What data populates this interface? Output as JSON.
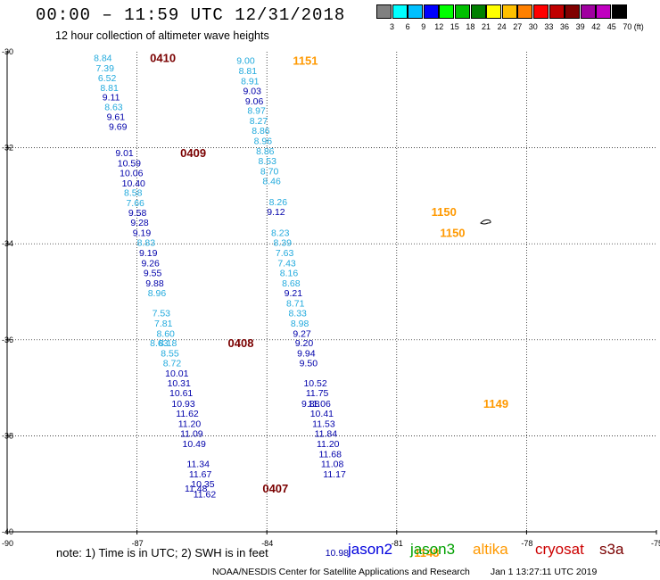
{
  "header": {
    "title": "00:00 – 11:59 UTC 12/31/2018",
    "subtitle": "12 hour collection of altimeter wave heights"
  },
  "color_scale": {
    "labels": [
      "3",
      "6",
      "9",
      "12",
      "15",
      "18",
      "21",
      "24",
      "27",
      "30",
      "33",
      "36",
      "39",
      "42",
      "45",
      "70",
      "(ft)"
    ],
    "colors": [
      "#808080",
      "#00ffff",
      "#00c0ff",
      "#0000ff",
      "#00ff00",
      "#00c000",
      "#008000",
      "#ffff00",
      "#ffc000",
      "#ff8000",
      "#ff0000",
      "#c00000",
      "#800000",
      "#a000a0",
      "#c000c0",
      "#000000"
    ]
  },
  "footer": {
    "note": "note: 1) Time is in UTC; 2) SWH is in feet",
    "agency": "NOAA/NESDIS Center for Satellite Applications and Research",
    "timestamp": "Jan  1 13:27:11 UTC 2019"
  },
  "legend": [
    {
      "label": "jason2",
      "color": "#0000dd"
    },
    {
      "label": "jason3",
      "color": "#00a000"
    },
    {
      "label": "altika",
      "color": "#ff9900"
    },
    {
      "label": "cryosat",
      "color": "#cc0000"
    },
    {
      "label": "s3a",
      "color": "#7a0000"
    }
  ],
  "chart_data": {
    "type": "scatter",
    "xlim": [
      -90,
      -75
    ],
    "ylim": [
      -40.2,
      -30
    ],
    "x_ticks": [
      "-90",
      "-87",
      "-84",
      "-81",
      "-78",
      "-75"
    ],
    "y_ticks": [
      "-30",
      "-32",
      "-34",
      "-36",
      "-38",
      "-40"
    ],
    "grid": true,
    "colors": {
      "dark_blue": "#0000aa",
      "light_blue": "#22aadd"
    },
    "tracks": [
      {
        "satellite": "s3a",
        "pass_color": "#7a0000",
        "pass_labels": [
          {
            "text": "0410",
            "lon": -86.7,
            "lat": -30.12
          },
          {
            "text": "0409",
            "lon": -86.0,
            "lat": -32.1
          },
          {
            "text": "0408",
            "lon": -84.9,
            "lat": -36.06
          },
          {
            "text": "0407",
            "lon": -84.1,
            "lat": -39.09
          }
        ],
        "points": [
          {
            "v": "8.84",
            "lon": -88.0,
            "lat": -30.12,
            "c": "light_blue"
          },
          {
            "v": "7.39",
            "lon": -87.95,
            "lat": -30.33,
            "c": "light_blue"
          },
          {
            "v": "6.52",
            "lon": -87.9,
            "lat": -30.54,
            "c": "light_blue"
          },
          {
            "v": "8.81",
            "lon": -87.85,
            "lat": -30.74,
            "c": "light_blue"
          },
          {
            "v": "9.11",
            "lon": -87.8,
            "lat": -30.94,
            "c": "dark_blue"
          },
          {
            "v": "8.63",
            "lon": -87.75,
            "lat": -31.14,
            "c": "light_blue"
          },
          {
            "v": "9.61",
            "lon": -87.7,
            "lat": -31.35,
            "c": "dark_blue"
          },
          {
            "v": "9.69",
            "lon": -87.65,
            "lat": -31.55,
            "c": "dark_blue"
          },
          {
            "v": "9.01",
            "lon": -87.5,
            "lat": -32.1,
            "c": "dark_blue"
          },
          {
            "v": "10.59",
            "lon": -87.45,
            "lat": -32.31,
            "c": "dark_blue"
          },
          {
            "v": "10.06",
            "lon": -87.4,
            "lat": -32.52,
            "c": "dark_blue"
          },
          {
            "v": "10.40",
            "lon": -87.35,
            "lat": -32.73,
            "c": "dark_blue"
          },
          {
            "v": "8.58",
            "lon": -87.3,
            "lat": -32.93,
            "c": "light_blue"
          },
          {
            "v": "7.66",
            "lon": -87.25,
            "lat": -33.14,
            "c": "light_blue"
          },
          {
            "v": "9.58",
            "lon": -87.2,
            "lat": -33.35,
            "c": "dark_blue"
          },
          {
            "v": "9.28",
            "lon": -87.15,
            "lat": -33.55,
            "c": "dark_blue"
          },
          {
            "v": "9.19",
            "lon": -87.1,
            "lat": -33.76,
            "c": "dark_blue"
          },
          {
            "v": "8.83",
            "lon": -87.0,
            "lat": -33.97,
            "c": "light_blue"
          },
          {
            "v": "9.19",
            "lon": -86.95,
            "lat": -34.18,
            "c": "dark_blue"
          },
          {
            "v": "9.26",
            "lon": -86.9,
            "lat": -34.4,
            "c": "dark_blue"
          },
          {
            "v": "9.55",
            "lon": -86.85,
            "lat": -34.6,
            "c": "dark_blue"
          },
          {
            "v": "9.88",
            "lon": -86.8,
            "lat": -34.81,
            "c": "dark_blue"
          },
          {
            "v": "8.96",
            "lon": -86.75,
            "lat": -35.02,
            "c": "light_blue"
          },
          {
            "v": "8.63",
            "lon": -86.7,
            "lat": -36.06,
            "c": "light_blue"
          },
          {
            "v": "7.53",
            "lon": -86.65,
            "lat": -35.44,
            "c": "light_blue"
          },
          {
            "v": "7.81",
            "lon": -86.6,
            "lat": -35.65,
            "c": "light_blue"
          },
          {
            "v": "8.60",
            "lon": -86.55,
            "lat": -35.86,
            "c": "light_blue"
          },
          {
            "v": "8.18",
            "lon": -86.5,
            "lat": -36.06,
            "c": "light_blue"
          },
          {
            "v": "8.55",
            "lon": -86.45,
            "lat": -36.27,
            "c": "light_blue"
          },
          {
            "v": "8.72",
            "lon": -86.4,
            "lat": -36.48,
            "c": "light_blue"
          },
          {
            "v": "10.01",
            "lon": -86.35,
            "lat": -36.69,
            "c": "dark_blue"
          },
          {
            "v": "10.31",
            "lon": -86.3,
            "lat": -36.9,
            "c": "dark_blue"
          },
          {
            "v": "10.61",
            "lon": -86.25,
            "lat": -37.1,
            "c": "dark_blue"
          },
          {
            "v": "10.93",
            "lon": -86.2,
            "lat": -37.32,
            "c": "dark_blue"
          },
          {
            "v": "11.62",
            "lon": -86.1,
            "lat": -37.53,
            "c": "dark_blue"
          },
          {
            "v": "11.20",
            "lon": -86.05,
            "lat": -37.74,
            "c": "dark_blue"
          },
          {
            "v": "11.09",
            "lon": -86.0,
            "lat": -37.95,
            "c": "dark_blue"
          },
          {
            "v": "10.49",
            "lon": -85.95,
            "lat": -38.16,
            "c": "dark_blue"
          },
          {
            "v": "11.48",
            "lon": -85.9,
            "lat": -39.09,
            "c": "dark_blue"
          },
          {
            "v": "11.34",
            "lon": -85.85,
            "lat": -38.58,
            "c": "dark_blue"
          },
          {
            "v": "11.67",
            "lon": -85.8,
            "lat": -38.79,
            "c": "dark_blue"
          },
          {
            "v": "10.35",
            "lon": -85.75,
            "lat": -39.0,
            "c": "dark_blue"
          },
          {
            "v": "11.62",
            "lon": -85.7,
            "lat": -39.21,
            "c": "dark_blue"
          }
        ]
      },
      {
        "satellite": "altika",
        "pass_color": "#ff9900",
        "pass_labels": [
          {
            "text": "1151",
            "lon": -83.4,
            "lat": -30.18
          },
          {
            "text": "1150",
            "lon": -80.2,
            "lat": -33.33
          },
          {
            "text": "1150",
            "lon": -80.0,
            "lat": -33.76
          },
          {
            "text": "1149",
            "lon": -79.0,
            "lat": -37.32
          },
          {
            "text": "1148",
            "lon": -80.6,
            "lat": -40.43
          }
        ],
        "points": [
          {
            "v": "9.00",
            "lon": -84.7,
            "lat": -30.18,
            "c": "light_blue"
          },
          {
            "v": "8.81",
            "lon": -84.65,
            "lat": -30.39,
            "c": "light_blue"
          },
          {
            "v": "8.91",
            "lon": -84.6,
            "lat": -30.6,
            "c": "light_blue"
          },
          {
            "v": "9.03",
            "lon": -84.55,
            "lat": -30.81,
            "c": "dark_blue"
          },
          {
            "v": "9.06",
            "lon": -84.5,
            "lat": -31.02,
            "c": "dark_blue"
          },
          {
            "v": "8.97",
            "lon": -84.45,
            "lat": -31.22,
            "c": "light_blue"
          },
          {
            "v": "8.27",
            "lon": -84.4,
            "lat": -31.43,
            "c": "light_blue"
          },
          {
            "v": "8.86",
            "lon": -84.35,
            "lat": -31.64,
            "c": "light_blue"
          },
          {
            "v": "8.96",
            "lon": -84.3,
            "lat": -31.85,
            "c": "light_blue"
          },
          {
            "v": "8.86",
            "lon": -84.25,
            "lat": -32.06,
            "c": "light_blue"
          },
          {
            "v": "8.53",
            "lon": -84.2,
            "lat": -32.27,
            "c": "light_blue"
          },
          {
            "v": "8.70",
            "lon": -84.15,
            "lat": -32.48,
            "c": "light_blue"
          },
          {
            "v": "8.46",
            "lon": -84.1,
            "lat": -32.69,
            "c": "light_blue"
          },
          {
            "v": "9.12",
            "lon": -84.0,
            "lat": -33.33,
            "c": "dark_blue"
          },
          {
            "v": "8.26",
            "lon": -83.95,
            "lat": -33.12,
            "c": "light_blue"
          },
          {
            "v": "8.23",
            "lon": -83.9,
            "lat": -33.76,
            "c": "light_blue"
          },
          {
            "v": "8.39",
            "lon": -83.85,
            "lat": -33.97,
            "c": "light_blue"
          },
          {
            "v": "7.63",
            "lon": -83.8,
            "lat": -34.18,
            "c": "light_blue"
          },
          {
            "v": "7.43",
            "lon": -83.75,
            "lat": -34.4,
            "c": "light_blue"
          },
          {
            "v": "8.16",
            "lon": -83.7,
            "lat": -34.6,
            "c": "light_blue"
          },
          {
            "v": "8.68",
            "lon": -83.65,
            "lat": -34.81,
            "c": "light_blue"
          },
          {
            "v": "9.21",
            "lon": -83.6,
            "lat": -35.02,
            "c": "dark_blue"
          },
          {
            "v": "8.71",
            "lon": -83.55,
            "lat": -35.23,
            "c": "light_blue"
          },
          {
            "v": "8.33",
            "lon": -83.5,
            "lat": -35.44,
            "c": "light_blue"
          },
          {
            "v": "8.98",
            "lon": -83.45,
            "lat": -35.65,
            "c": "light_blue"
          },
          {
            "v": "9.27",
            "lon": -83.4,
            "lat": -35.86,
            "c": "dark_blue"
          },
          {
            "v": "9.20",
            "lon": -83.35,
            "lat": -36.06,
            "c": "dark_blue"
          },
          {
            "v": "9.94",
            "lon": -83.3,
            "lat": -36.27,
            "c": "dark_blue"
          },
          {
            "v": "9.50",
            "lon": -83.25,
            "lat": -36.48,
            "c": "dark_blue"
          },
          {
            "v": "9.88",
            "lon": -83.2,
            "lat": -37.32,
            "c": "dark_blue"
          },
          {
            "v": "10.52",
            "lon": -83.15,
            "lat": -36.9,
            "c": "dark_blue"
          },
          {
            "v": "11.75",
            "lon": -83.1,
            "lat": -37.1,
            "c": "dark_blue"
          },
          {
            "v": "11.06",
            "lon": -83.05,
            "lat": -37.32,
            "c": "dark_blue"
          },
          {
            "v": "10.41",
            "lon": -83.0,
            "lat": -37.53,
            "c": "dark_blue"
          },
          {
            "v": "11.53",
            "lon": -82.95,
            "lat": -37.74,
            "c": "dark_blue"
          },
          {
            "v": "11.84",
            "lon": -82.9,
            "lat": -37.95,
            "c": "dark_blue"
          },
          {
            "v": "11.20",
            "lon": -82.85,
            "lat": -38.16,
            "c": "dark_blue"
          },
          {
            "v": "11.68",
            "lon": -82.8,
            "lat": -38.37,
            "c": "dark_blue"
          },
          {
            "v": "11.08",
            "lon": -82.75,
            "lat": -38.58,
            "c": "dark_blue"
          },
          {
            "v": "11.17",
            "lon": -82.7,
            "lat": -38.79,
            "c": "dark_blue"
          },
          {
            "v": "10.98",
            "lon": -82.65,
            "lat": -40.43,
            "c": "dark_blue"
          }
        ]
      }
    ]
  }
}
